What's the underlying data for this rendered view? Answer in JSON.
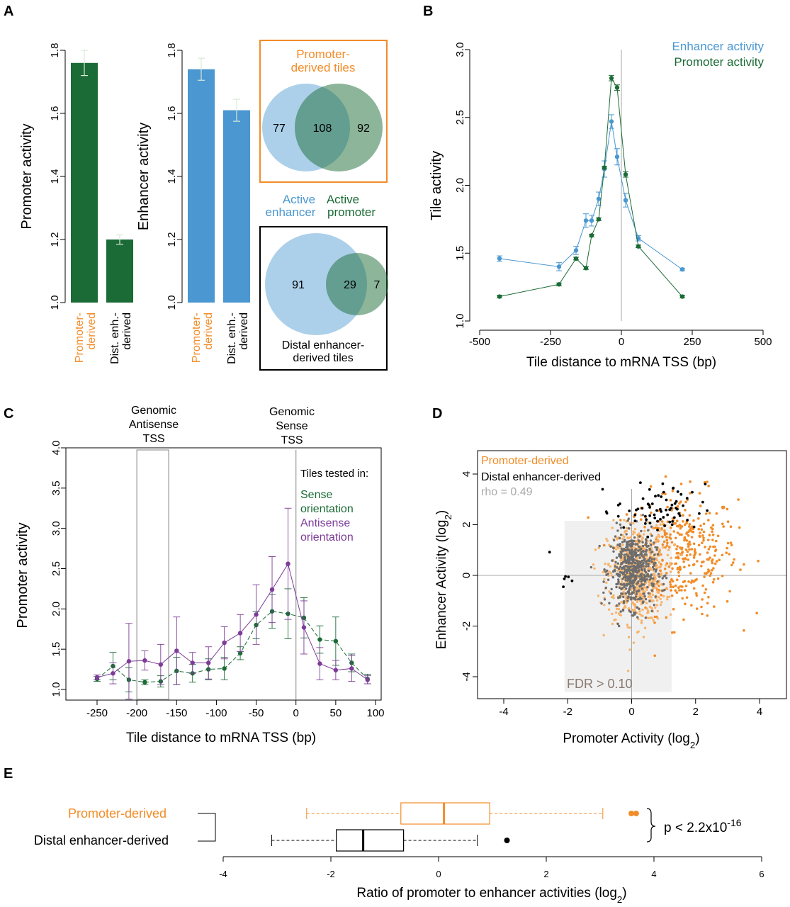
{
  "colors": {
    "promoter_green": "#1a6b35",
    "enhancer_blue": "#4a97d1",
    "orange": "#f28c28",
    "purple": "#7d3c98",
    "gray_pts": "#6d6d6d",
    "light_orange": "#f7b36b",
    "fdr_bg": "#f0f0f0",
    "axis_gray": "#aaaaaa"
  },
  "panel_labels": {
    "a": "A",
    "b": "B",
    "c": "C",
    "d": "D",
    "e": "E"
  },
  "panelA": {
    "promoter_bars": {
      "chart_data": {
        "type": "bar",
        "ylabel": "Promoter activity",
        "ylim": [
          1.0,
          1.8
        ],
        "yticks": [
          "1.0",
          "1.2",
          "1.4",
          "1.6",
          "1.8"
        ],
        "categories": [
          "Promoter-derived",
          "Dist. enh.-derived"
        ],
        "values": [
          1.76,
          1.2
        ],
        "errors": [
          0.04,
          0.015
        ]
      },
      "cat_lines": [
        [
          "Promoter-",
          "derived"
        ],
        [
          "Dist. enh.-",
          "derived"
        ]
      ]
    },
    "enhancer_bars": {
      "chart_data": {
        "type": "bar",
        "ylabel": "Enhancer activity",
        "ylim": [
          1.0,
          1.8
        ],
        "yticks": [
          "1.0",
          "1.2",
          "1.4",
          "1.6",
          "1.8"
        ],
        "categories": [
          "Promoter-derived",
          "Dist. enh.-derived"
        ],
        "values": [
          1.74,
          1.61
        ],
        "errors": [
          0.035,
          0.035
        ]
      },
      "cat_lines": [
        [
          "Promoter-",
          "derived"
        ],
        [
          "Dist. enh.-",
          "derived"
        ]
      ]
    },
    "venn_top": {
      "title_lines": [
        "Promoter-",
        "derived tiles"
      ],
      "left": "77",
      "middle": "108",
      "right": "92"
    },
    "venn_legend": {
      "enhancer_lines": [
        "Active",
        "enhancer"
      ],
      "promoter_lines": [
        "Active",
        "promoter"
      ]
    },
    "venn_bottom": {
      "title_lines": [
        "Distal enhancer-",
        "derived tiles"
      ],
      "left": "91",
      "middle": "29",
      "right": "7"
    }
  },
  "panelB": {
    "chart_data": {
      "type": "line",
      "xlabel": "Tile distance to mRNA TSS (bp)",
      "ylabel": "Tile activity",
      "xlim": [
        -500,
        500
      ],
      "ylim": [
        1.0,
        3.0
      ],
      "xticks": [
        "-500",
        "-250",
        "0",
        "250",
        "500"
      ],
      "yticks": [
        "1.0",
        "1.5",
        "2.0",
        "2.5",
        "3.0"
      ],
      "series": [
        {
          "name": "Enhancer activity",
          "x": [
            -430,
            -220,
            -160,
            -125,
            -105,
            -80,
            -60,
            -35,
            -15,
            15,
            60,
            215
          ],
          "y": [
            1.46,
            1.4,
            1.52,
            1.74,
            1.74,
            1.9,
            2.12,
            2.47,
            2.21,
            1.89,
            1.61,
            1.38
          ],
          "err": [
            0.02,
            0.03,
            0.03,
            0.05,
            0.04,
            0.05,
            0.06,
            0.05,
            0.06,
            0.05,
            0.02,
            0.01
          ]
        },
        {
          "name": "Promoter activity",
          "x": [
            -430,
            -220,
            -160,
            -125,
            -105,
            -80,
            -60,
            -35,
            -15,
            15,
            60,
            215
          ],
          "y": [
            1.18,
            1.27,
            1.46,
            1.39,
            1.63,
            1.75,
            2.13,
            2.79,
            2.72,
            2.08,
            1.55,
            1.18
          ],
          "err": [
            0.01,
            0.01,
            0.01,
            0.01,
            0.01,
            0.01,
            0.01,
            0.02,
            0.02,
            0.02,
            0.01,
            0.01
          ]
        }
      ]
    }
  },
  "panelC": {
    "chart_data": {
      "type": "line",
      "xlabel": "Tile distance to mRNA TSS (bp)",
      "ylabel": "Promoter activity",
      "xlim": [
        -280,
        100
      ],
      "ylim": [
        0.95,
        4.0
      ],
      "xticks": [
        "-250",
        "-200",
        "-150",
        "-100",
        "-50",
        "0",
        "50",
        "100"
      ],
      "yticks": [
        "1.0",
        "1.5",
        "2.0",
        "2.5",
        "3.0",
        "3.5",
        "4.0"
      ],
      "series": [
        {
          "name": "Sense orientation",
          "x": [
            -250,
            -230,
            -210,
            -190,
            -170,
            -150,
            -130,
            -110,
            -90,
            -70,
            -50,
            -30,
            -10,
            10,
            30,
            50,
            70,
            90
          ],
          "y": [
            1.13,
            1.29,
            1.12,
            1.09,
            1.1,
            1.23,
            1.2,
            1.25,
            1.26,
            1.45,
            1.8,
            1.97,
            1.94,
            1.89,
            1.62,
            1.6,
            1.33,
            1.13
          ],
          "err": [
            0.03,
            0.17,
            0.15,
            0.03,
            0.07,
            0.17,
            0.11,
            0.13,
            0.14,
            0.08,
            0.17,
            0.21,
            0.31,
            0.25,
            0.17,
            0.3,
            0.11,
            0.06
          ]
        },
        {
          "name": "Antisense orientation",
          "x": [
            -250,
            -230,
            -210,
            -190,
            -170,
            -150,
            -130,
            -110,
            -90,
            -70,
            -50,
            -30,
            -10,
            10,
            30,
            50,
            70,
            90
          ],
          "y": [
            1.15,
            1.2,
            1.35,
            1.36,
            1.31,
            1.48,
            1.33,
            1.33,
            1.58,
            1.7,
            1.93,
            2.24,
            2.56,
            1.77,
            1.32,
            1.24,
            1.26,
            1.12
          ],
          "err": [
            0.03,
            0.13,
            0.47,
            0.12,
            0.25,
            0.42,
            0.13,
            0.2,
            0.2,
            0.23,
            0.37,
            0.41,
            0.69,
            0.33,
            0.2,
            0.12,
            0.16,
            0.05
          ]
        }
      ]
    },
    "ann_antisense_lines": [
      "Genomic",
      "Antisense",
      "TSS"
    ],
    "ann_sense_lines": [
      "Genomic",
      "Sense",
      "TSS"
    ],
    "legend_title": "Tiles tested in:",
    "legend_sense_lines": [
      "Sense",
      "orientation"
    ],
    "legend_antisense_lines": [
      "Antisense",
      "orientation"
    ]
  },
  "panelD": {
    "chart_data": {
      "type": "scatter",
      "xlabel": "Promoter Activity (log2)",
      "ylabel": "Enhancer Activity (log2)",
      "xlim": [
        -5,
        4.2
      ],
      "ylim": [
        -4.6,
        4.8
      ],
      "xticks": [
        "-4",
        "-2",
        "0",
        "2",
        "4"
      ],
      "yticks": [
        "-4",
        "-2",
        "0",
        "2",
        "4"
      ],
      "series": [
        {
          "name": "Promoter-derived"
        },
        {
          "name": "Distal enhancer-derived"
        }
      ],
      "rho": "rho = 0.49",
      "fdr_label": "FDR > 0.10",
      "fdr_region": {
        "x": [
          -2.1,
          1.25
        ],
        "y": [
          -4.6,
          2.15
        ]
      }
    },
    "axis_base_x": "Promoter Activity (log",
    "axis_base_y": "Enhancer Activity (log",
    "axis_sub": "2",
    "axis_close": ")"
  },
  "panelE": {
    "chart_data": {
      "type": "box",
      "xlabel": "Ratio of promoter to enhancer activities (log2)",
      "xlim": [
        -4,
        6
      ],
      "xticks": [
        "-4",
        "-2",
        "0",
        "2",
        "4",
        "6"
      ],
      "series": [
        {
          "name": "Promoter-derived",
          "whisker_low": -2.45,
          "q1": -0.7,
          "median": 0.1,
          "q3": 0.95,
          "whisker_high": 3.05,
          "outliers": [
            3.58,
            3.67
          ]
        },
        {
          "name": "Distal enhancer-derived",
          "whisker_low": -3.1,
          "q1": -1.9,
          "median": -1.4,
          "q3": -0.65,
          "whisker_high": 0.72,
          "outliers": [
            1.27
          ]
        }
      ]
    },
    "pval_base": "p < 2.2x10",
    "pval_exp": "-16",
    "axis_base": "Ratio of promoter to enhancer activities (log",
    "axis_sub": "2",
    "axis_close": ")"
  }
}
